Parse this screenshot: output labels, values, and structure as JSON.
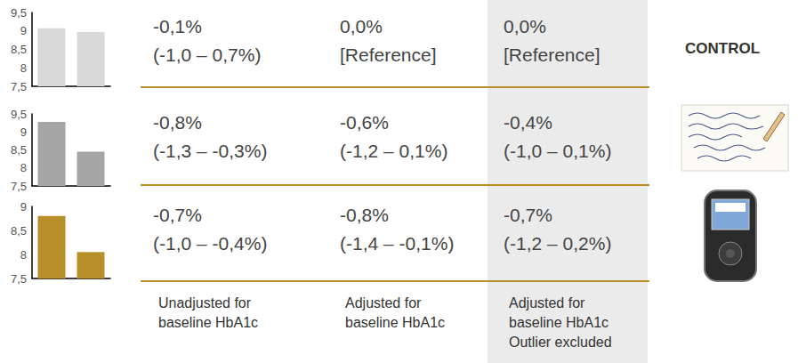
{
  "chart_data": [
    {
      "type": "bar",
      "categories": [
        null,
        null
      ],
      "values": [
        9.07,
        8.97
      ],
      "color": "#d9d9d9",
      "ylim": [
        7.5,
        9.5
      ],
      "yticks": [
        {
          "value": 7.5,
          "label": "7,5"
        },
        8,
        {
          "value": 8.5,
          "label": "8,5"
        },
        9,
        {
          "value": 9.5,
          "label": "9,5"
        }
      ],
      "grid": false,
      "tick_labels": "y"
    },
    {
      "type": "bar",
      "categories": [
        null,
        null
      ],
      "values": [
        9.28,
        8.45
      ],
      "color": "#a6a6a6",
      "ylim": [
        7.5,
        9.5
      ],
      "yticks": [
        {
          "value": 7.5,
          "label": "7,5"
        },
        8,
        {
          "value": 8.5,
          "label": "8,5"
        },
        9,
        {
          "value": 9.5,
          "label": "9,5"
        }
      ],
      "grid": false,
      "tick_labels": "y"
    },
    {
      "type": "bar",
      "categories": [
        null,
        null
      ],
      "values": [
        8.8,
        8.05
      ],
      "color": "#b8902a",
      "ylim": [
        7.5,
        9
      ],
      "yticks": [
        {
          "value": 7.5,
          "label": "7,5"
        },
        8,
        {
          "value": 8.5,
          "label": "8,5"
        },
        9
      ],
      "grid": false,
      "tick_labels": "y"
    }
  ],
  "table": {
    "columns": [
      [
        "Unadjusted for",
        "baseline HbA1c"
      ],
      [
        "Adjusted for",
        "baseline HbA1c"
      ],
      [
        "Adjusted for",
        "baseline HbA1c",
        "Outlier excluded"
      ]
    ],
    "rows": [
      {
        "label": "CONTROL",
        "cells": [
          [
            "-0,1%",
            "(-1,0 – 0,7%)"
          ],
          [
            "0,0%",
            "[Reference]"
          ],
          [
            "0,0%",
            "[Reference]"
          ]
        ]
      },
      {
        "cells": [
          [
            "-0,8%",
            "(-1,3 – -0,3%)"
          ],
          [
            "-0,6%",
            "(-1,2 – 0,1%)"
          ],
          [
            "-0,4%",
            "(-1,0 – 0,1%)"
          ]
        ]
      },
      {
        "cells": [
          [
            "-0,7%",
            "(-1,0 – -0,4%)"
          ],
          [
            "-0,8%",
            "(-1,4 – -0,1%)"
          ],
          [
            "-0,7%",
            "(-1,2 – 0,2%)"
          ]
        ]
      }
    ]
  }
}
